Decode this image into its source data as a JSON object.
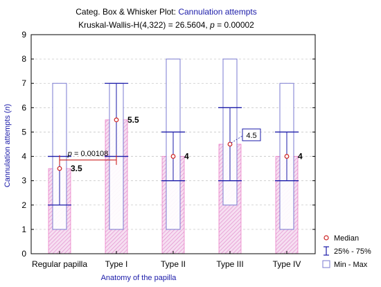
{
  "chart_data": {
    "type": "box",
    "title_prefix": "Categ. Box & Whisker Plot:",
    "title_variable": "Cannulation attempts",
    "subtitle_prefix": "Kruskal-Wallis-H(4,322) = 26.5604,",
    "subtitle_p_symbol": "p",
    "subtitle_p_rest": " = 0.00002",
    "xlabel": "Anatomy of the papilla",
    "ylabel_prefix": "Cannulation attempts (",
    "ylabel_italic": "n",
    "ylabel_suffix": ")",
    "ylim": [
      0,
      9
    ],
    "yticks": [
      "0",
      "1",
      "2",
      "3",
      "4",
      "5",
      "6",
      "7",
      "8",
      "9"
    ],
    "categories": [
      "Regular papilla",
      "Type I",
      "Type II",
      "Type III",
      "Type IV"
    ],
    "median": [
      3.5,
      5.5,
      4,
      4.5,
      4
    ],
    "q1": [
      2,
      4,
      3,
      3,
      3
    ],
    "q3": [
      4,
      7,
      5,
      6,
      5
    ],
    "min": [
      1,
      1,
      1,
      2,
      1
    ],
    "max": [
      7,
      7,
      8,
      8,
      7
    ],
    "median_labels": [
      "3.5",
      "5.5",
      "4",
      "4.5",
      "4"
    ],
    "boxed_label_index": 3,
    "comparison": {
      "from": 0,
      "to": 1,
      "y": 3.85,
      "p_symbol": "p",
      "p_rest": " = 0.00108"
    },
    "legend": {
      "position": "bottom-right",
      "items": [
        "Median",
        "25% - 75%",
        "Min - Max"
      ]
    },
    "colors": {
      "axis": "#000000",
      "grid": "#c8c8c8",
      "median_bar": "#e85fb8",
      "whisker": "#1a1aa8",
      "minmax": "#7a7ad0",
      "median_point": "#cc2222",
      "comparison": "#cc2222",
      "title_blue": "#1a1aa8"
    }
  }
}
